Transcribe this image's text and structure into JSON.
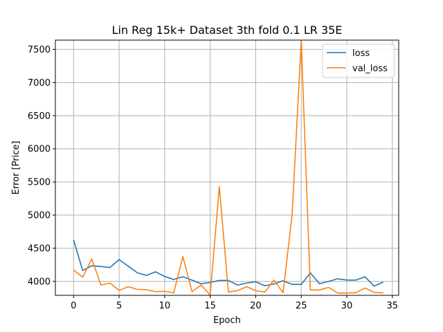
{
  "chart_data": {
    "type": "line",
    "title": "Lin Reg 15k+ Dataset 3th fold 0.1 LR 35E",
    "xlabel": "Epoch",
    "ylabel": "Error [Price]",
    "xlim": [
      -2.0,
      35.7
    ],
    "ylim": [
      3790,
      7640
    ],
    "xticks": [
      0,
      5,
      10,
      15,
      20,
      25,
      30,
      35
    ],
    "yticks": [
      4000,
      4500,
      5000,
      5500,
      6000,
      6500,
      7000,
      7500
    ],
    "grid": true,
    "legend_position": "top-right",
    "x": [
      0,
      1,
      2,
      3,
      4,
      5,
      6,
      7,
      8,
      9,
      10,
      11,
      12,
      13,
      14,
      15,
      16,
      17,
      18,
      19,
      20,
      21,
      22,
      23,
      24,
      25,
      26,
      27,
      28,
      29,
      30,
      31,
      32,
      33,
      34
    ],
    "series": [
      {
        "name": "loss",
        "color": "#1f77b4",
        "values": [
          4625,
          4165,
          4235,
          4225,
          4210,
          4330,
          4230,
          4130,
          4090,
          4145,
          4075,
          4030,
          4070,
          4020,
          3965,
          3985,
          4015,
          4015,
          3945,
          3975,
          3995,
          3935,
          3960,
          4010,
          3955,
          3955,
          4130,
          3965,
          4000,
          4040,
          4020,
          4020,
          4070,
          3930,
          3990
        ]
      },
      {
        "name": "val_loss",
        "color": "#ff7f0e",
        "values": [
          4170,
          4065,
          4340,
          3945,
          3975,
          3865,
          3920,
          3880,
          3875,
          3845,
          3850,
          3830,
          4375,
          3845,
          3945,
          3795,
          5430,
          3840,
          3860,
          3920,
          3860,
          3840,
          4020,
          3830,
          5010,
          7640,
          3870,
          3870,
          3910,
          3825,
          3825,
          3830,
          3900,
          3835,
          3825
        ]
      }
    ]
  }
}
